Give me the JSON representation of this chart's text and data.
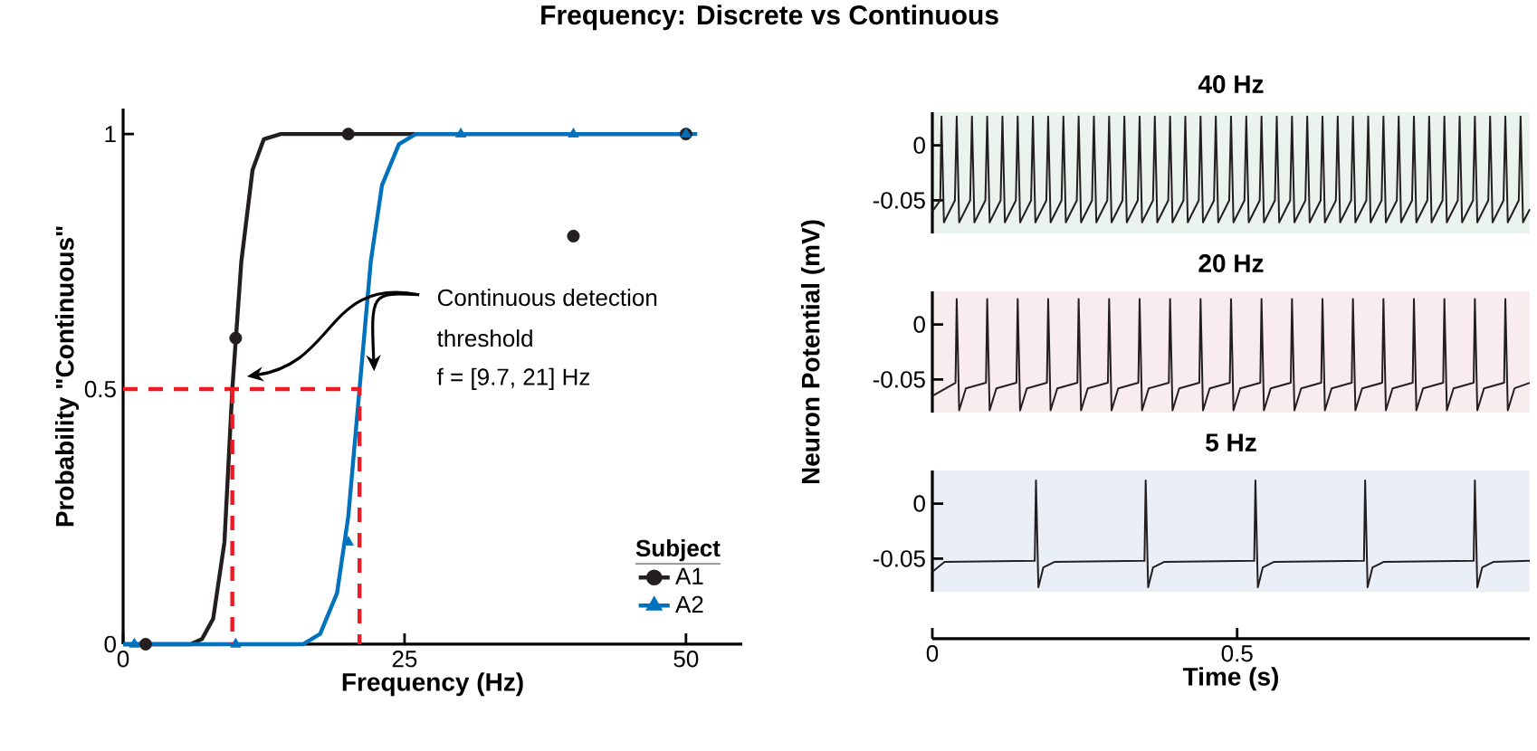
{
  "chart_data": [
    {
      "type": "line",
      "title": "Frequency: Discrete vs Continuous",
      "xlabel": "Frequency (Hz)",
      "ylabel": "Probability \"Continuous\"",
      "legend_title": "Subject",
      "legend": "bottom right",
      "xlim": [
        0,
        55
      ],
      "ylim": [
        0,
        1.05
      ],
      "xticks": [
        0,
        25,
        50
      ],
      "yticks": [
        0,
        0.5,
        1
      ],
      "annotations": [
        "Continuous detection",
        "threshold",
        "f = [9.7, 21] Hz"
      ],
      "series": [
        {
          "type": "line",
          "color": "#231f20",
          "x": [
            0,
            6,
            7,
            8,
            9,
            9.7,
            10.5,
            11.5,
            12.5,
            14,
            50
          ],
          "values": [
            0,
            0,
            0.01,
            0.05,
            0.2,
            0.5,
            0.75,
            0.93,
            0.99,
            1,
            1
          ]
        },
        {
          "type": "line",
          "color": "#0072bd",
          "x": [
            0,
            16,
            17.5,
            19,
            20,
            21,
            22,
            23,
            24.5,
            26,
            51
          ],
          "values": [
            0,
            0,
            0.02,
            0.1,
            0.25,
            0.5,
            0.75,
            0.9,
            0.98,
            1,
            1
          ]
        },
        {
          "type": "scatter",
          "name": "A1",
          "color": "#231f20",
          "marker": "circle",
          "x": [
            2,
            10,
            20,
            40,
            50
          ],
          "values": [
            0,
            0.6,
            1,
            0.8,
            1
          ]
        },
        {
          "type": "scatter",
          "name": "A2",
          "color": "#0072bd",
          "marker": "triangle",
          "x": [
            1,
            10,
            20,
            30,
            40,
            50
          ],
          "values": [
            0,
            0,
            0.2,
            1,
            1,
            1
          ]
        },
        {
          "type": "line",
          "color": "#ed1c24",
          "line_style": "dashed",
          "x": [
            0,
            21,
            21
          ],
          "values": [
            0.5,
            0.5,
            0
          ]
        },
        {
          "type": "line",
          "color": "#ed1c24",
          "line_style": "dashed",
          "x": [
            9.7,
            9.7
          ],
          "values": [
            0.5,
            0
          ]
        }
      ]
    },
    {
      "type": "line",
      "title": "40 Hz",
      "xlim": [
        0,
        0.98
      ],
      "ylim": [
        -0.08,
        0.03
      ],
      "yticks": [
        -0.05,
        0
      ],
      "tick_labels": "y",
      "series": [
        {
          "color": "#231f20",
          "x": [
            0,
            0.013,
            0.015,
            0.019,
            0.037,
            0.04,
            0.044,
            0.062,
            0.065,
            0.069,
            0.087,
            0.09,
            0.094,
            0.112,
            0.115,
            0.119,
            0.137,
            0.14,
            0.144,
            0.162,
            0.165,
            0.169,
            0.187,
            0.19,
            0.194,
            0.212,
            0.215,
            0.219,
            0.237,
            0.24,
            0.244,
            0.262,
            0.265,
            0.269,
            0.287,
            0.29,
            0.294,
            0.312,
            0.315,
            0.319,
            0.337,
            0.34,
            0.344,
            0.362,
            0.365,
            0.369,
            0.387,
            0.39,
            0.394,
            0.412,
            0.415,
            0.419,
            0.437,
            0.44,
            0.444,
            0.462,
            0.465,
            0.469,
            0.487,
            0.49,
            0.494,
            0.512,
            0.515,
            0.519,
            0.537,
            0.54,
            0.544,
            0.562,
            0.565,
            0.569,
            0.587,
            0.59,
            0.594,
            0.612,
            0.615,
            0.619,
            0.637,
            0.64,
            0.644,
            0.662,
            0.665,
            0.669,
            0.687,
            0.69,
            0.694,
            0.712,
            0.715,
            0.719,
            0.737,
            0.74,
            0.744,
            0.762,
            0.765,
            0.769,
            0.787,
            0.79,
            0.794,
            0.812,
            0.815,
            0.819,
            0.837,
            0.84,
            0.844,
            0.862,
            0.865,
            0.869,
            0.887,
            0.89,
            0.894,
            0.912,
            0.915,
            0.919,
            0.937,
            0.94,
            0.944,
            0.962,
            0.965,
            0.969,
            0.98
          ],
          "values": [
            -0.06,
            -0.05,
            0.026,
            -0.07,
            -0.05,
            0.026,
            -0.07,
            -0.05,
            0.026,
            -0.07,
            -0.05,
            0.026,
            -0.07,
            -0.05,
            0.026,
            -0.07,
            -0.05,
            0.026,
            -0.07,
            -0.05,
            0.026,
            -0.07,
            -0.05,
            0.026,
            -0.07,
            -0.05,
            0.026,
            -0.07,
            -0.05,
            0.026,
            -0.07,
            -0.05,
            0.026,
            -0.07,
            -0.05,
            0.026,
            -0.07,
            -0.05,
            0.026,
            -0.07,
            -0.05,
            0.026,
            -0.07,
            -0.05,
            0.026,
            -0.07,
            -0.05,
            0.026,
            -0.07,
            -0.05,
            0.026,
            -0.07,
            -0.05,
            0.026,
            -0.07,
            -0.05,
            0.026,
            -0.07,
            -0.05,
            0.026,
            -0.07,
            -0.05,
            0.026,
            -0.07,
            -0.05,
            0.026,
            -0.07,
            -0.05,
            0.026,
            -0.07,
            -0.05,
            0.026,
            -0.07,
            -0.05,
            0.026,
            -0.07,
            -0.05,
            0.026,
            -0.07,
            -0.05,
            0.026,
            -0.07,
            -0.05,
            0.026,
            -0.07,
            -0.05,
            0.026,
            -0.07,
            -0.05,
            0.026,
            -0.07,
            -0.05,
            0.026,
            -0.07,
            -0.05,
            0.026,
            -0.07,
            -0.05,
            0.026,
            -0.07,
            -0.05,
            0.026,
            -0.07,
            -0.05,
            0.026,
            -0.07,
            -0.05,
            0.026,
            -0.07,
            -0.05,
            0.026,
            -0.07,
            -0.05,
            0.026,
            -0.07,
            -0.05,
            0.026,
            -0.07,
            -0.058
          ]
        }
      ]
    },
    {
      "type": "line",
      "title": "20 Hz",
      "ylabel": "Neuron Potential (mV)",
      "xlim": [
        0,
        0.98
      ],
      "ylim": [
        -0.08,
        0.03
      ],
      "yticks": [
        -0.05,
        0
      ],
      "tick_labels": "y",
      "series": [
        {
          "color": "#231f20",
          "x": [
            0,
            0.038,
            0.04,
            0.044,
            0.055,
            0.088,
            0.09,
            0.094,
            0.105,
            0.138,
            0.14,
            0.144,
            0.155,
            0.188,
            0.19,
            0.194,
            0.205,
            0.238,
            0.24,
            0.244,
            0.255,
            0.288,
            0.29,
            0.294,
            0.305,
            0.338,
            0.34,
            0.344,
            0.355,
            0.388,
            0.39,
            0.394,
            0.405,
            0.438,
            0.44,
            0.444,
            0.455,
            0.488,
            0.49,
            0.494,
            0.505,
            0.538,
            0.54,
            0.544,
            0.555,
            0.588,
            0.59,
            0.594,
            0.605,
            0.638,
            0.64,
            0.644,
            0.655,
            0.688,
            0.69,
            0.694,
            0.705,
            0.738,
            0.74,
            0.744,
            0.755,
            0.788,
            0.79,
            0.794,
            0.805,
            0.838,
            0.84,
            0.844,
            0.855,
            0.888,
            0.89,
            0.894,
            0.905,
            0.938,
            0.94,
            0.944,
            0.955,
            0.98
          ],
          "values": [
            -0.065,
            -0.053,
            0.023,
            -0.078,
            -0.058,
            -0.053,
            0.023,
            -0.078,
            -0.058,
            -0.053,
            0.023,
            -0.078,
            -0.058,
            -0.053,
            0.023,
            -0.078,
            -0.058,
            -0.053,
            0.023,
            -0.078,
            -0.058,
            -0.053,
            0.023,
            -0.078,
            -0.058,
            -0.053,
            0.023,
            -0.078,
            -0.058,
            -0.053,
            0.023,
            -0.078,
            -0.058,
            -0.053,
            0.023,
            -0.078,
            -0.058,
            -0.053,
            0.023,
            -0.078,
            -0.058,
            -0.053,
            0.023,
            -0.078,
            -0.058,
            -0.053,
            0.023,
            -0.078,
            -0.058,
            -0.053,
            0.023,
            -0.078,
            -0.058,
            -0.053,
            0.023,
            -0.078,
            -0.058,
            -0.053,
            0.023,
            -0.078,
            -0.058,
            -0.053,
            0.023,
            -0.078,
            -0.058,
            -0.053,
            0.023,
            -0.078,
            -0.058,
            -0.053,
            0.023,
            -0.078,
            -0.058,
            -0.053,
            0.023,
            -0.078,
            -0.058,
            -0.053
          ]
        }
      ]
    },
    {
      "type": "line",
      "title": "5 Hz",
      "xlabel": "Time (s)",
      "xlim": [
        0,
        0.98
      ],
      "ylim": [
        -0.08,
        0.03
      ],
      "xticks": [
        0,
        0.5
      ],
      "yticks": [
        -0.05,
        0
      ],
      "series": [
        {
          "color": "#231f20",
          "x": [
            0,
            0.02,
            0.168,
            0.17,
            0.174,
            0.182,
            0.2,
            0.348,
            0.35,
            0.354,
            0.362,
            0.38,
            0.528,
            0.53,
            0.534,
            0.542,
            0.56,
            0.708,
            0.71,
            0.714,
            0.722,
            0.74,
            0.888,
            0.89,
            0.894,
            0.902,
            0.92,
            0.98
          ],
          "values": [
            -0.062,
            -0.053,
            -0.052,
            0.021,
            -0.076,
            -0.058,
            -0.053,
            -0.052,
            0.021,
            -0.076,
            -0.058,
            -0.053,
            -0.052,
            0.021,
            -0.076,
            -0.058,
            -0.053,
            -0.052,
            0.021,
            -0.076,
            -0.058,
            -0.053,
            -0.052,
            0.021,
            -0.076,
            -0.058,
            -0.053,
            -0.052
          ]
        }
      ]
    }
  ]
}
